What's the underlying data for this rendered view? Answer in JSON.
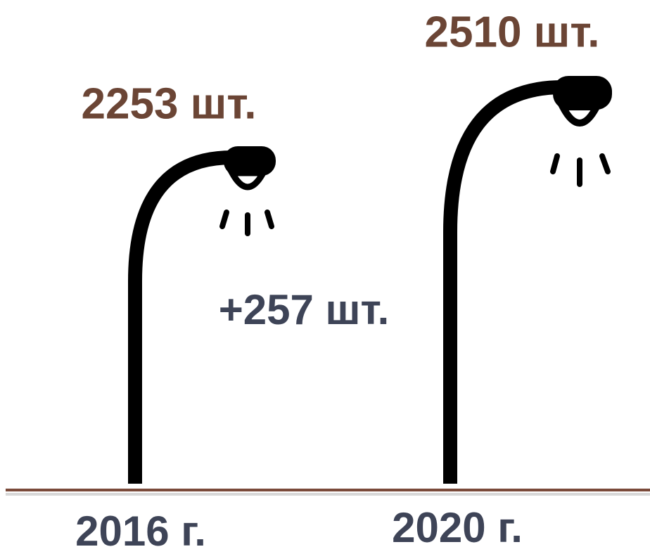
{
  "lamps": [
    {
      "count": "2253 шт.",
      "year": "2016 г."
    },
    {
      "count": "2510 шт.",
      "year": "2020 г."
    }
  ],
  "difference": "+257 шт."
}
